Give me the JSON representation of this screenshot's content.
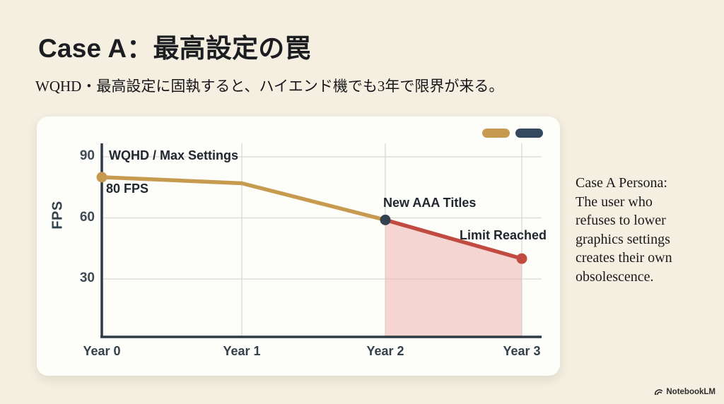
{
  "page": {
    "title": "Case A：最高設定の罠",
    "subtitle": "WQHD・最高設定に固執すると、ハイエンド機でも3年で限界が来る。",
    "persona_text": "Case A Persona:\nThe user who\nrefuses to lower\ngraphics settings\ncreates their own\nobsolescence.",
    "footer_brand": "NotebookLM"
  },
  "colors": {
    "background": "#f4efe1",
    "card": "#fdfdfa",
    "gold": "#c79b4f",
    "red": "#c14b41",
    "pink_area": "#efb5b0",
    "navy": "#34414f",
    "axis": "#2e3a46",
    "gridline": "#d9d9d4"
  },
  "chart_data": {
    "type": "line",
    "ylabel": "FPS",
    "x_labels": [
      "Year 0",
      "Year 1",
      "Year 2",
      "Year 3"
    ],
    "y_ticks": [
      90,
      60,
      30
    ],
    "ylim": [
      0,
      100
    ],
    "grid": true,
    "series": [
      {
        "name": "WQHD / Max Settings",
        "color": "#c79b4f",
        "x": [
          0,
          1,
          2
        ],
        "values": [
          80,
          77,
          59
        ]
      },
      {
        "name": "Limit Reached",
        "color": "#c14b41",
        "x": [
          2,
          3
        ],
        "values": [
          59,
          40
        ]
      }
    ],
    "points": [
      {
        "x": 0,
        "fps": 80,
        "color": "#c79b4f"
      },
      {
        "x": 2,
        "fps": 59,
        "color": "#34414f"
      },
      {
        "x": 3,
        "fps": 40,
        "color": "#c14b41"
      }
    ],
    "shaded_region": {
      "x_from": 2,
      "x_to": 3,
      "fill": "#efb5b0",
      "opacity": 0.55
    },
    "annotations": [
      {
        "id": "wqhd",
        "text": "WQHD / Max Settings"
      },
      {
        "id": "fps80",
        "text": "80 FPS"
      },
      {
        "id": "aaa",
        "text": "New AAA Titles"
      },
      {
        "id": "limit",
        "text": "Limit Reached"
      }
    ],
    "legend": {
      "position": "top-right",
      "swatches": [
        {
          "name": "WQHD / Max Settings",
          "color": "#c79b4f"
        },
        {
          "name": "Limit",
          "color": "#34495e"
        }
      ]
    }
  }
}
